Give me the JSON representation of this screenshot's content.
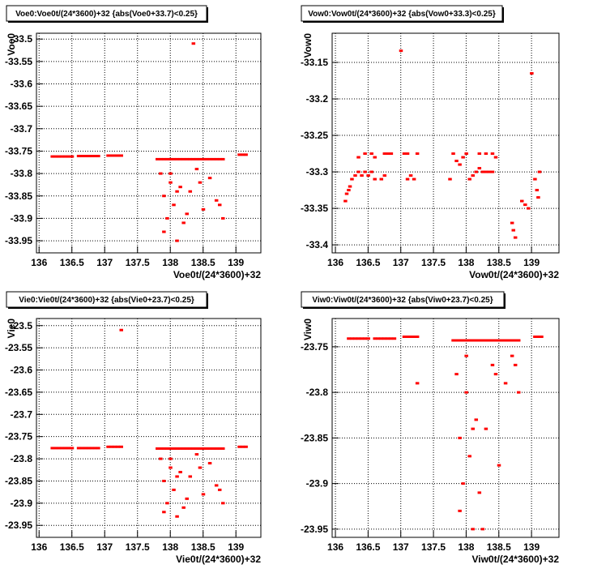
{
  "chart_data": [
    {
      "type": "scatter",
      "title": "Voe0:Voe0t/(24*3600)+32 {abs(Voe0+33.7)<0.25}",
      "x_label": "Voe0t/(24*3600)+32",
      "y_label": "Voe0",
      "color": "#ff0000",
      "grid": true,
      "xlim": [
        135.96,
        139.38
      ],
      "ylim": [
        -33.977,
        -33.487
      ],
      "xticks": [
        136,
        136.5,
        137,
        137.5,
        138,
        138.5,
        139
      ],
      "yticks": [
        -33.5,
        -33.55,
        -33.6,
        -33.65,
        -33.7,
        -33.75,
        -33.8,
        -33.85,
        -33.9,
        -33.95
      ],
      "x": [
        136.2,
        136.25,
        136.3,
        136.35,
        136.4,
        136.45,
        136.5,
        136.6,
        136.65,
        136.7,
        136.75,
        136.8,
        136.85,
        136.9,
        137.05,
        137.1,
        137.15,
        137.2,
        137.25,
        137.8,
        137.85,
        137.9,
        137.95,
        138.0,
        138.05,
        138.1,
        138.15,
        138.2,
        138.25,
        138.3,
        138.35,
        138.4,
        138.45,
        138.5,
        138.55,
        138.6,
        138.65,
        138.7,
        138.75,
        138.8,
        139.05,
        139.1,
        139.15,
        137.85,
        137.9,
        137.95,
        138.0,
        138.05,
        138.1,
        138.15,
        138.2,
        138.3,
        138.4,
        138.5,
        138.6,
        138.7,
        138.8,
        137.9,
        138.0,
        138.1,
        138.25,
        138.45,
        138.75,
        138.35
      ],
      "y": [
        -33.762,
        -33.762,
        -33.762,
        -33.762,
        -33.762,
        -33.762,
        -33.762,
        -33.761,
        -33.761,
        -33.761,
        -33.761,
        -33.761,
        -33.761,
        -33.761,
        -33.76,
        -33.76,
        -33.76,
        -33.76,
        -33.76,
        -33.768,
        -33.768,
        -33.768,
        -33.768,
        -33.768,
        -33.768,
        -33.768,
        -33.768,
        -33.768,
        -33.768,
        -33.768,
        -33.768,
        -33.768,
        -33.768,
        -33.768,
        -33.768,
        -33.768,
        -33.768,
        -33.768,
        -33.768,
        -33.768,
        -33.758,
        -33.758,
        -33.758,
        -33.8,
        -33.85,
        -33.9,
        -33.82,
        -33.87,
        -33.95,
        -33.83,
        -33.91,
        -33.84,
        -33.79,
        -33.88,
        -33.81,
        -33.86,
        -33.9,
        -33.93,
        -33.8,
        -33.84,
        -33.89,
        -33.82,
        -33.87,
        -33.51
      ]
    },
    {
      "type": "scatter",
      "title": "Vow0:Vow0t/(24*3600)+32 {abs(Vow0+33.3)<0.25}",
      "x_label": "Vow0t/(24*3600)+32",
      "y_label": "Vow0",
      "color": "#ff0000",
      "grid": true,
      "xlim": [
        135.95,
        139.42
      ],
      "ylim": [
        -33.411,
        -33.11
      ],
      "xticks": [
        136,
        136.5,
        137,
        137.5,
        138,
        138.5,
        139
      ],
      "yticks": [
        -33.15,
        -33.2,
        -33.25,
        -33.3,
        -33.35,
        -33.4
      ],
      "x": [
        136.15,
        136.17,
        136.2,
        136.22,
        136.25,
        136.3,
        136.35,
        136.4,
        136.45,
        136.5,
        136.55,
        136.6,
        136.35,
        136.45,
        136.55,
        136.6,
        136.75,
        136.8,
        136.85,
        136.75,
        136.7,
        137.05,
        137.1,
        137.1,
        137.15,
        137.2,
        137.25,
        137.75,
        137.8,
        137.85,
        137.9,
        137.95,
        138.0,
        138.05,
        138.1,
        138.15,
        138.2,
        138.25,
        138.3,
        138.35,
        138.4,
        138.2,
        138.3,
        138.4,
        138.45,
        138.7,
        138.72,
        138.75,
        138.85,
        138.9,
        138.95,
        139.05,
        139.08,
        139.1,
        139.12,
        137.0,
        139.0
      ],
      "y": [
        -33.34,
        -33.33,
        -33.325,
        -33.32,
        -33.31,
        -33.305,
        -33.3,
        -33.305,
        -33.3,
        -33.305,
        -33.3,
        -33.31,
        -33.28,
        -33.275,
        -33.275,
        -33.28,
        -33.275,
        -33.275,
        -33.275,
        -33.305,
        -33.31,
        -33.275,
        -33.275,
        -33.31,
        -33.305,
        -33.31,
        -33.275,
        -33.31,
        -33.275,
        -33.285,
        -33.29,
        -33.28,
        -33.275,
        -33.31,
        -33.305,
        -33.3,
        -33.295,
        -33.3,
        -33.3,
        -33.3,
        -33.3,
        -33.275,
        -33.275,
        -33.275,
        -33.28,
        -33.37,
        -33.38,
        -33.39,
        -33.34,
        -33.345,
        -33.35,
        -33.31,
        -33.325,
        -33.335,
        -33.3,
        -33.134,
        -33.165
      ]
    },
    {
      "type": "scatter",
      "title": "Vie0:Vie0t/(24*3600)+32 {abs(Vie0+23.7)<0.25}",
      "x_label": "Vie0t/(24*3600)+32",
      "y_label": "Vie0",
      "color": "#ff0000",
      "grid": true,
      "xlim": [
        135.96,
        139.38
      ],
      "ylim": [
        -23.977,
        -23.484
      ],
      "xticks": [
        136,
        136.5,
        137,
        137.5,
        138,
        138.5,
        139
      ],
      "yticks": [
        -23.5,
        -23.55,
        -23.6,
        -23.65,
        -23.7,
        -23.75,
        -23.8,
        -23.85,
        -23.9,
        -23.95
      ],
      "x": [
        136.2,
        136.25,
        136.3,
        136.35,
        136.4,
        136.45,
        136.5,
        136.6,
        136.65,
        136.7,
        136.75,
        136.8,
        136.85,
        136.9,
        137.05,
        137.1,
        137.15,
        137.2,
        137.25,
        137.8,
        137.85,
        137.9,
        137.95,
        138.0,
        138.05,
        138.1,
        138.15,
        138.2,
        138.25,
        138.3,
        138.35,
        138.4,
        138.45,
        138.5,
        138.55,
        138.6,
        138.65,
        138.7,
        138.75,
        138.8,
        139.05,
        139.1,
        139.15,
        137.85,
        137.9,
        137.95,
        138.0,
        138.05,
        138.1,
        138.15,
        138.2,
        138.3,
        138.4,
        138.5,
        138.6,
        138.7,
        138.8,
        137.9,
        138.0,
        138.1,
        138.25,
        138.45,
        138.75,
        137.25
      ],
      "y": [
        -23.776,
        -23.776,
        -23.776,
        -23.776,
        -23.776,
        -23.776,
        -23.776,
        -23.776,
        -23.776,
        -23.776,
        -23.776,
        -23.776,
        -23.776,
        -23.776,
        -23.773,
        -23.773,
        -23.773,
        -23.773,
        -23.773,
        -23.777,
        -23.777,
        -23.777,
        -23.777,
        -23.777,
        -23.777,
        -23.777,
        -23.777,
        -23.777,
        -23.777,
        -23.777,
        -23.777,
        -23.777,
        -23.777,
        -23.777,
        -23.777,
        -23.777,
        -23.777,
        -23.777,
        -23.777,
        -23.777,
        -23.773,
        -23.773,
        -23.773,
        -23.8,
        -23.85,
        -23.9,
        -23.82,
        -23.87,
        -23.93,
        -23.83,
        -23.91,
        -23.84,
        -23.79,
        -23.88,
        -23.81,
        -23.86,
        -23.9,
        -23.92,
        -23.8,
        -23.84,
        -23.89,
        -23.82,
        -23.87,
        -23.51
      ]
    },
    {
      "type": "scatter",
      "title": "Viw0:Viw0t/(24*3600)+32 {abs(Viw0+23.7)<0.25}",
      "x_label": "Viw0t/(24*3600)+32",
      "y_label": "Viw0",
      "color": "#ff0000",
      "grid": true,
      "xlim": [
        135.95,
        139.42
      ],
      "ylim": [
        -23.959,
        -23.719
      ],
      "xticks": [
        136,
        136.5,
        137,
        137.5,
        138,
        138.5,
        139
      ],
      "yticks": [
        -23.75,
        -23.8,
        -23.85,
        -23.9,
        -23.95
      ],
      "x": [
        136.2,
        136.25,
        136.3,
        136.35,
        136.4,
        136.45,
        136.5,
        136.6,
        136.65,
        136.7,
        136.75,
        136.8,
        136.85,
        136.9,
        137.05,
        137.1,
        137.15,
        137.2,
        137.25,
        137.8,
        137.85,
        137.9,
        137.95,
        138.0,
        138.05,
        138.1,
        138.15,
        138.2,
        138.25,
        138.3,
        138.35,
        138.4,
        138.45,
        138.5,
        138.55,
        138.6,
        138.65,
        138.7,
        138.75,
        138.8,
        139.05,
        139.1,
        139.15,
        137.85,
        137.9,
        137.95,
        138.0,
        138.05,
        138.1,
        138.15,
        138.2,
        138.3,
        138.4,
        138.5,
        138.6,
        138.7,
        138.8,
        137.9,
        138.0,
        138.1,
        138.25,
        138.45,
        138.75,
        137.25
      ],
      "y": [
        -23.741,
        -23.741,
        -23.741,
        -23.741,
        -23.741,
        -23.741,
        -23.741,
        -23.741,
        -23.741,
        -23.741,
        -23.741,
        -23.741,
        -23.741,
        -23.741,
        -23.739,
        -23.739,
        -23.739,
        -23.739,
        -23.739,
        -23.743,
        -23.743,
        -23.743,
        -23.743,
        -23.743,
        -23.743,
        -23.743,
        -23.743,
        -23.743,
        -23.743,
        -23.743,
        -23.743,
        -23.743,
        -23.743,
        -23.743,
        -23.743,
        -23.743,
        -23.743,
        -23.743,
        -23.743,
        -23.743,
        -23.739,
        -23.739,
        -23.739,
        -23.78,
        -23.85,
        -23.9,
        -23.8,
        -23.87,
        -23.95,
        -23.83,
        -23.91,
        -23.84,
        -23.77,
        -23.88,
        -23.79,
        -23.76,
        -23.8,
        -23.93,
        -23.76,
        -23.84,
        -23.95,
        -23.78,
        -23.77,
        -23.79
      ]
    }
  ]
}
